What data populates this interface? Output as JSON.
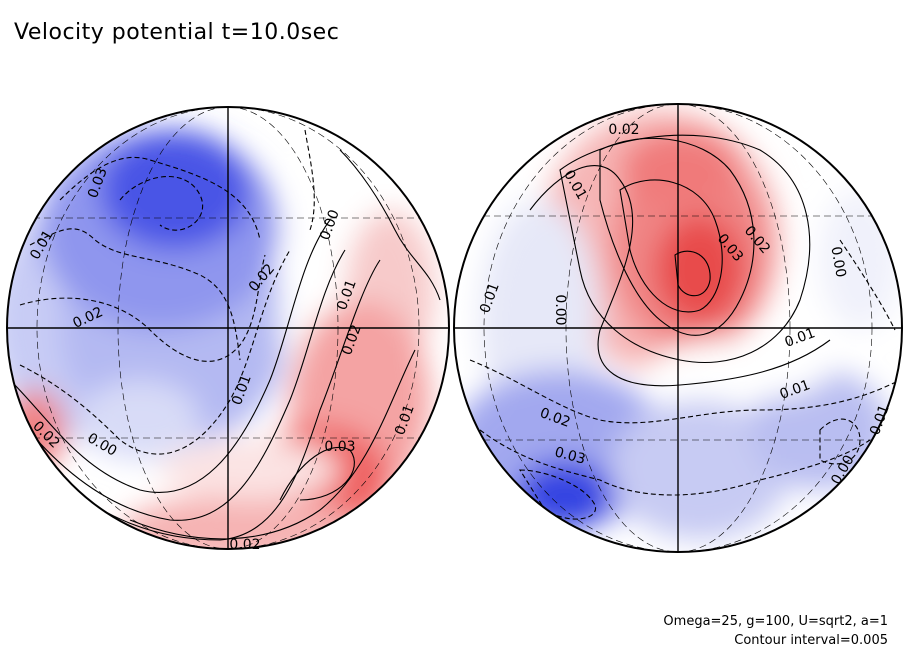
{
  "chart_data": {
    "type": "heatmap",
    "title": "Velocity potential t=10.0sec",
    "projection": "orthographic",
    "colormap": "blue-white-red",
    "value_range": [
      -0.035,
      0.035
    ],
    "contour_interval": 0.005,
    "negative_contours": "dashed",
    "hemispheres": [
      {
        "name": "left",
        "contour_labels": [
          {
            "text": "0.03",
            "angle": -70
          },
          {
            "text": "0.01",
            "angle": -60
          },
          {
            "text": "0.02",
            "angle": -25
          },
          {
            "text": "0.02",
            "angle": -50
          },
          {
            "text": "0.00",
            "angle": -70
          },
          {
            "text": "0.01",
            "angle": -70
          },
          {
            "text": "0.02",
            "angle": -70
          },
          {
            "text": "0.01",
            "angle": -70
          },
          {
            "text": "0.00",
            "angle": 30
          },
          {
            "text": "0.02",
            "angle": 45
          },
          {
            "text": "0.01",
            "angle": -70
          },
          {
            "text": "0.03",
            "angle": 0
          },
          {
            "text": "0.02",
            "angle": 0
          }
        ]
      },
      {
        "name": "right",
        "contour_labels": [
          {
            "text": "0.02",
            "angle": 0
          },
          {
            "text": "0.01",
            "angle": 60
          },
          {
            "text": "0.02",
            "angle": 50
          },
          {
            "text": "0.03",
            "angle": 50
          },
          {
            "text": "0.00",
            "angle": 80
          },
          {
            "text": "0.01",
            "angle": -70
          },
          {
            "text": "0.00",
            "angle": 90
          },
          {
            "text": "0.01",
            "angle": -20
          },
          {
            "text": "0.01",
            "angle": -20
          },
          {
            "text": "0.02",
            "angle": 20
          },
          {
            "text": "0.03",
            "angle": 15
          },
          {
            "text": "0.01",
            "angle": -70
          },
          {
            "text": "0.00",
            "angle": -60
          }
        ]
      }
    ]
  },
  "annotations": {
    "params": "Omega=25, g=100, U=sqrt2, a=1",
    "interval": "Contour interval=0.005"
  }
}
